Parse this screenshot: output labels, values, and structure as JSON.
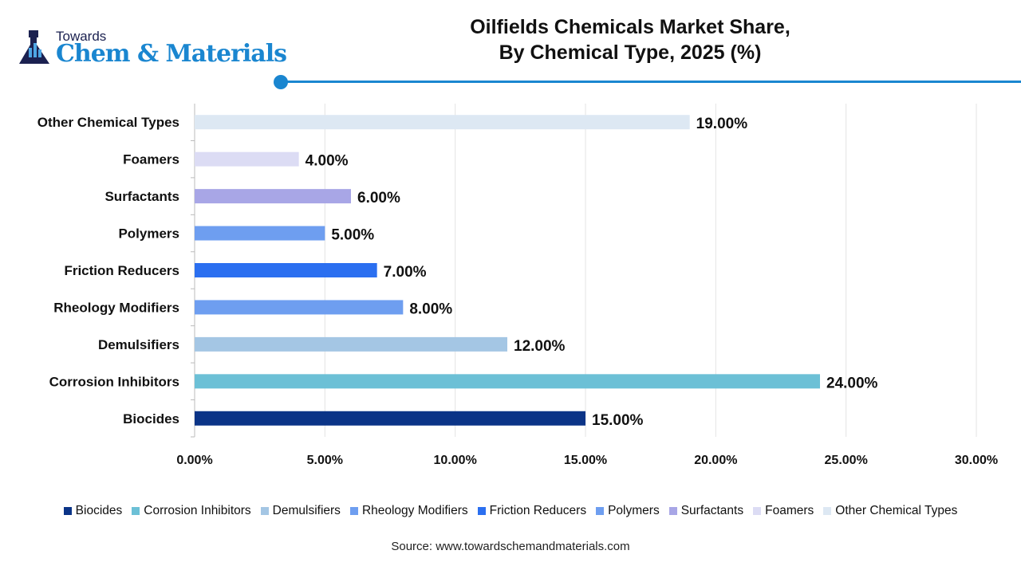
{
  "logo": {
    "line1": "Towards",
    "line2": "Chem & Materials"
  },
  "title": {
    "line1": "Oilfields Chemicals Market Share,",
    "line2": "By Chemical Type, 2025 (%)"
  },
  "chart_data": {
    "type": "bar",
    "orientation": "horizontal",
    "title": "Oilfields Chemicals Market Share, By Chemical Type, 2025 (%)",
    "categories": [
      "Biocides",
      "Corrosion Inhibitors",
      "Demulsifiers",
      "Rheology Modifiers",
      "Friction Reducers",
      "Polymers",
      "Surfactants",
      "Foamers",
      "Other Chemical Types"
    ],
    "values": [
      15,
      24,
      12,
      8,
      7,
      5,
      6,
      4,
      19
    ],
    "data_labels": [
      "15.00%",
      "24.00%",
      "12.00%",
      "8.00%",
      "7.00%",
      "5.00%",
      "6.00%",
      "4.00%",
      "19.00%"
    ],
    "colors": [
      "#0b3487",
      "#6cc0d6",
      "#a4c6e4",
      "#6e9ef0",
      "#2b6ff0",
      "#6e9ef0",
      "#a8a6e6",
      "#dcdcf4",
      "#dde8f3"
    ],
    "xlim": [
      0,
      30
    ],
    "xticks": [
      "0.00%",
      "5.00%",
      "10.00%",
      "15.00%",
      "20.00%",
      "25.00%",
      "30.00%"
    ],
    "grid": true,
    "legend": "bottom",
    "xlabel": "",
    "ylabel": ""
  },
  "source": "Source: www.towardschemandmaterials.com"
}
